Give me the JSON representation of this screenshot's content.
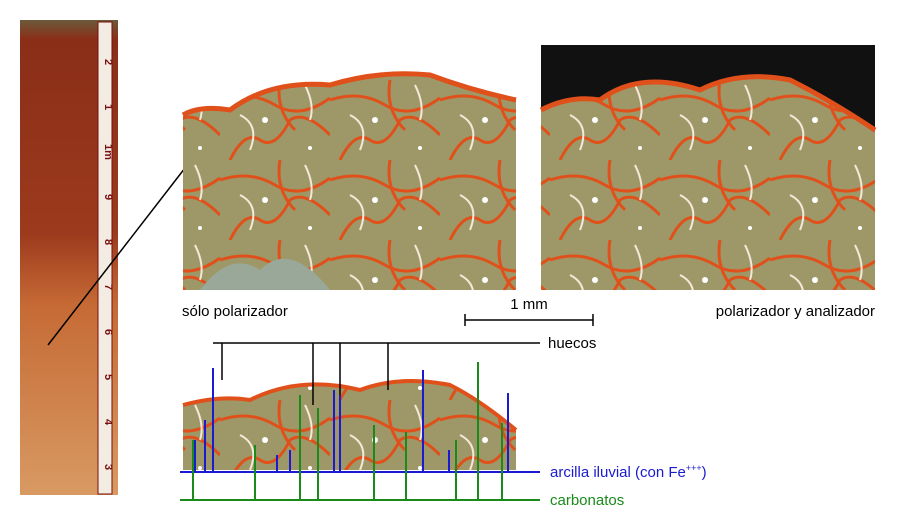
{
  "labels": {
    "left_image": "sólo polarizador",
    "right_image": "polarizador y analizador",
    "scale": "1 mm",
    "voids": "huecos",
    "clay": [
      "arcilla iluvial (con Fe",
      "+++",
      ")"
    ],
    "carbonates": "carbonatos"
  },
  "ruler": [
    "2",
    "1",
    "1m",
    "9",
    "8",
    "7",
    "6",
    "5",
    "4",
    "3"
  ]
}
